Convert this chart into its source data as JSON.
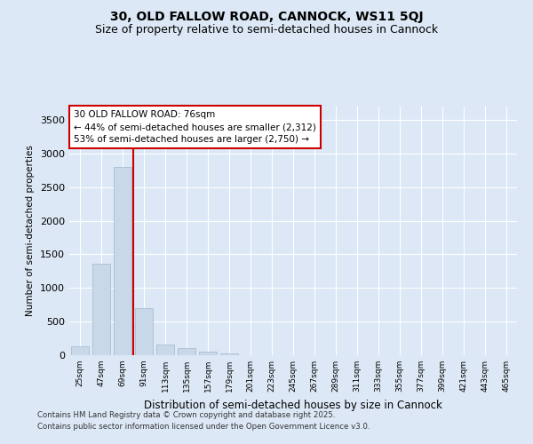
{
  "title_line1": "30, OLD FALLOW ROAD, CANNOCK, WS11 5QJ",
  "title_line2": "Size of property relative to semi-detached houses in Cannock",
  "xlabel": "Distribution of semi-detached houses by size in Cannock",
  "ylabel": "Number of semi-detached properties",
  "categories": [
    "25sqm",
    "47sqm",
    "69sqm",
    "91sqm",
    "113sqm",
    "135sqm",
    "157sqm",
    "179sqm",
    "201sqm",
    "223sqm",
    "245sqm",
    "267sqm",
    "289sqm",
    "311sqm",
    "333sqm",
    "355sqm",
    "377sqm",
    "399sqm",
    "421sqm",
    "443sqm",
    "465sqm"
  ],
  "values": [
    130,
    1360,
    2800,
    700,
    165,
    100,
    50,
    30,
    0,
    0,
    0,
    0,
    0,
    0,
    0,
    0,
    0,
    0,
    0,
    0,
    0
  ],
  "bar_color": "#c8d8e8",
  "bar_edge_color": "#a0b8cc",
  "red_line_x": 2,
  "annotation_text": "30 OLD FALLOW ROAD: 76sqm\n← 44% of semi-detached houses are smaller (2,312)\n53% of semi-detached houses are larger (2,750) →",
  "ylim": [
    0,
    3700
  ],
  "yticks": [
    0,
    500,
    1000,
    1500,
    2000,
    2500,
    3000,
    3500
  ],
  "background_color": "#dce8f5",
  "plot_bg_color": "#dce8f5",
  "footer_line1": "Contains HM Land Registry data © Crown copyright and database right 2025.",
  "footer_line2": "Contains public sector information licensed under the Open Government Licence v3.0.",
  "title_fontsize": 10,
  "subtitle_fontsize": 9,
  "annotation_box_color": "#ffffff",
  "annotation_border_color": "#cc0000",
  "red_line_color": "#cc0000"
}
